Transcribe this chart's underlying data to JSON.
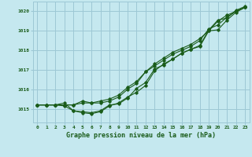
{
  "title": "Graphe pression niveau de la mer (hPa)",
  "bg_color": "#c5e8ef",
  "grid_color": "#9dc8d5",
  "line_color": "#1a5c1a",
  "xlim": [
    -0.5,
    23.5
  ],
  "ylim": [
    1014.3,
    1020.5
  ],
  "yticks": [
    1015,
    1016,
    1017,
    1018,
    1019,
    1020
  ],
  "xticks": [
    0,
    1,
    2,
    3,
    4,
    5,
    6,
    7,
    8,
    9,
    10,
    11,
    12,
    13,
    14,
    15,
    16,
    17,
    18,
    19,
    20,
    21,
    22,
    23
  ],
  "series": [
    [
      1015.2,
      1015.2,
      1015.2,
      1015.2,
      1015.2,
      1015.3,
      1015.3,
      1015.4,
      1015.5,
      1015.7,
      1016.1,
      1016.4,
      1016.9,
      1017.2,
      1017.5,
      1017.8,
      1018.0,
      1018.2,
      1018.5,
      1019.1,
      1019.3,
      1019.7,
      1020.0,
      1020.2
    ],
    [
      1015.2,
      1015.2,
      1015.2,
      1015.2,
      1015.2,
      1015.4,
      1015.3,
      1015.3,
      1015.4,
      1015.6,
      1016.0,
      1016.3,
      1016.9,
      1017.3,
      1017.6,
      1017.9,
      1018.1,
      1018.3,
      1018.6,
      1019.0,
      1019.5,
      1019.8,
      1020.0,
      1020.2
    ],
    [
      1015.2,
      1015.2,
      1015.2,
      1015.3,
      1014.9,
      1014.8,
      1014.75,
      1014.85,
      1015.15,
      1015.3,
      1015.6,
      1015.85,
      1016.2,
      1016.95,
      1017.3,
      1017.55,
      1017.85,
      1018.05,
      1018.2,
      1019.0,
      1019.05,
      1019.55,
      1019.95,
      1020.2
    ],
    [
      1015.2,
      1015.2,
      1015.2,
      1015.15,
      1014.9,
      1014.85,
      1014.8,
      1014.9,
      1015.2,
      1015.25,
      1015.55,
      1016.05,
      1016.35,
      1017.05,
      1017.25,
      1017.55,
      1017.85,
      1018.05,
      1018.25,
      1019.05,
      1019.55,
      1019.65,
      1020.05,
      1020.25
    ]
  ]
}
